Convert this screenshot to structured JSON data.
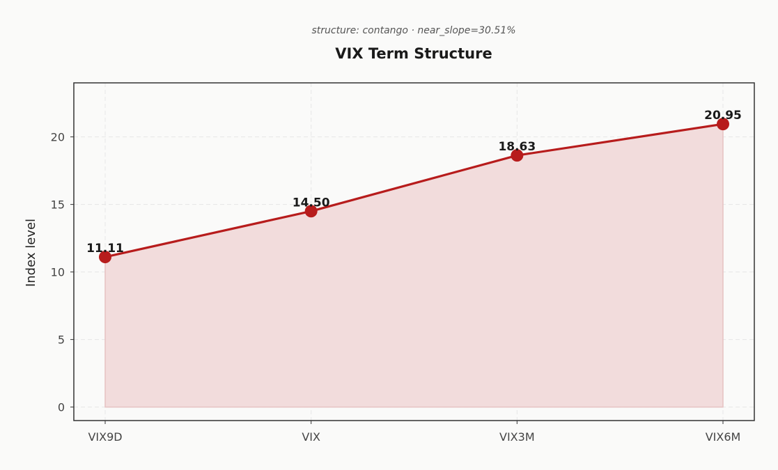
{
  "chart_data": {
    "type": "area",
    "subtitle": "structure: contango · near_slope=30.51%",
    "title": "VIX Term Structure",
    "xlabel": "",
    "ylabel": "Index level",
    "categories": [
      "VIX9D",
      "VIX",
      "VIX3M",
      "VIX6M"
    ],
    "series": [
      {
        "values": [
          11.11,
          14.5,
          18.63,
          20.95
        ],
        "labels": [
          "11.11",
          "14.50",
          "18.63",
          "20.95"
        ]
      }
    ],
    "ylim": [
      -1,
      24
    ],
    "yticks": [
      0,
      5,
      10,
      15,
      20
    ],
    "grid": true,
    "colors": {
      "line": "#b71c1c",
      "marker": "#b71c1c",
      "fill": "#f2dcdc",
      "fill_edge": "#e6c2c2"
    }
  }
}
